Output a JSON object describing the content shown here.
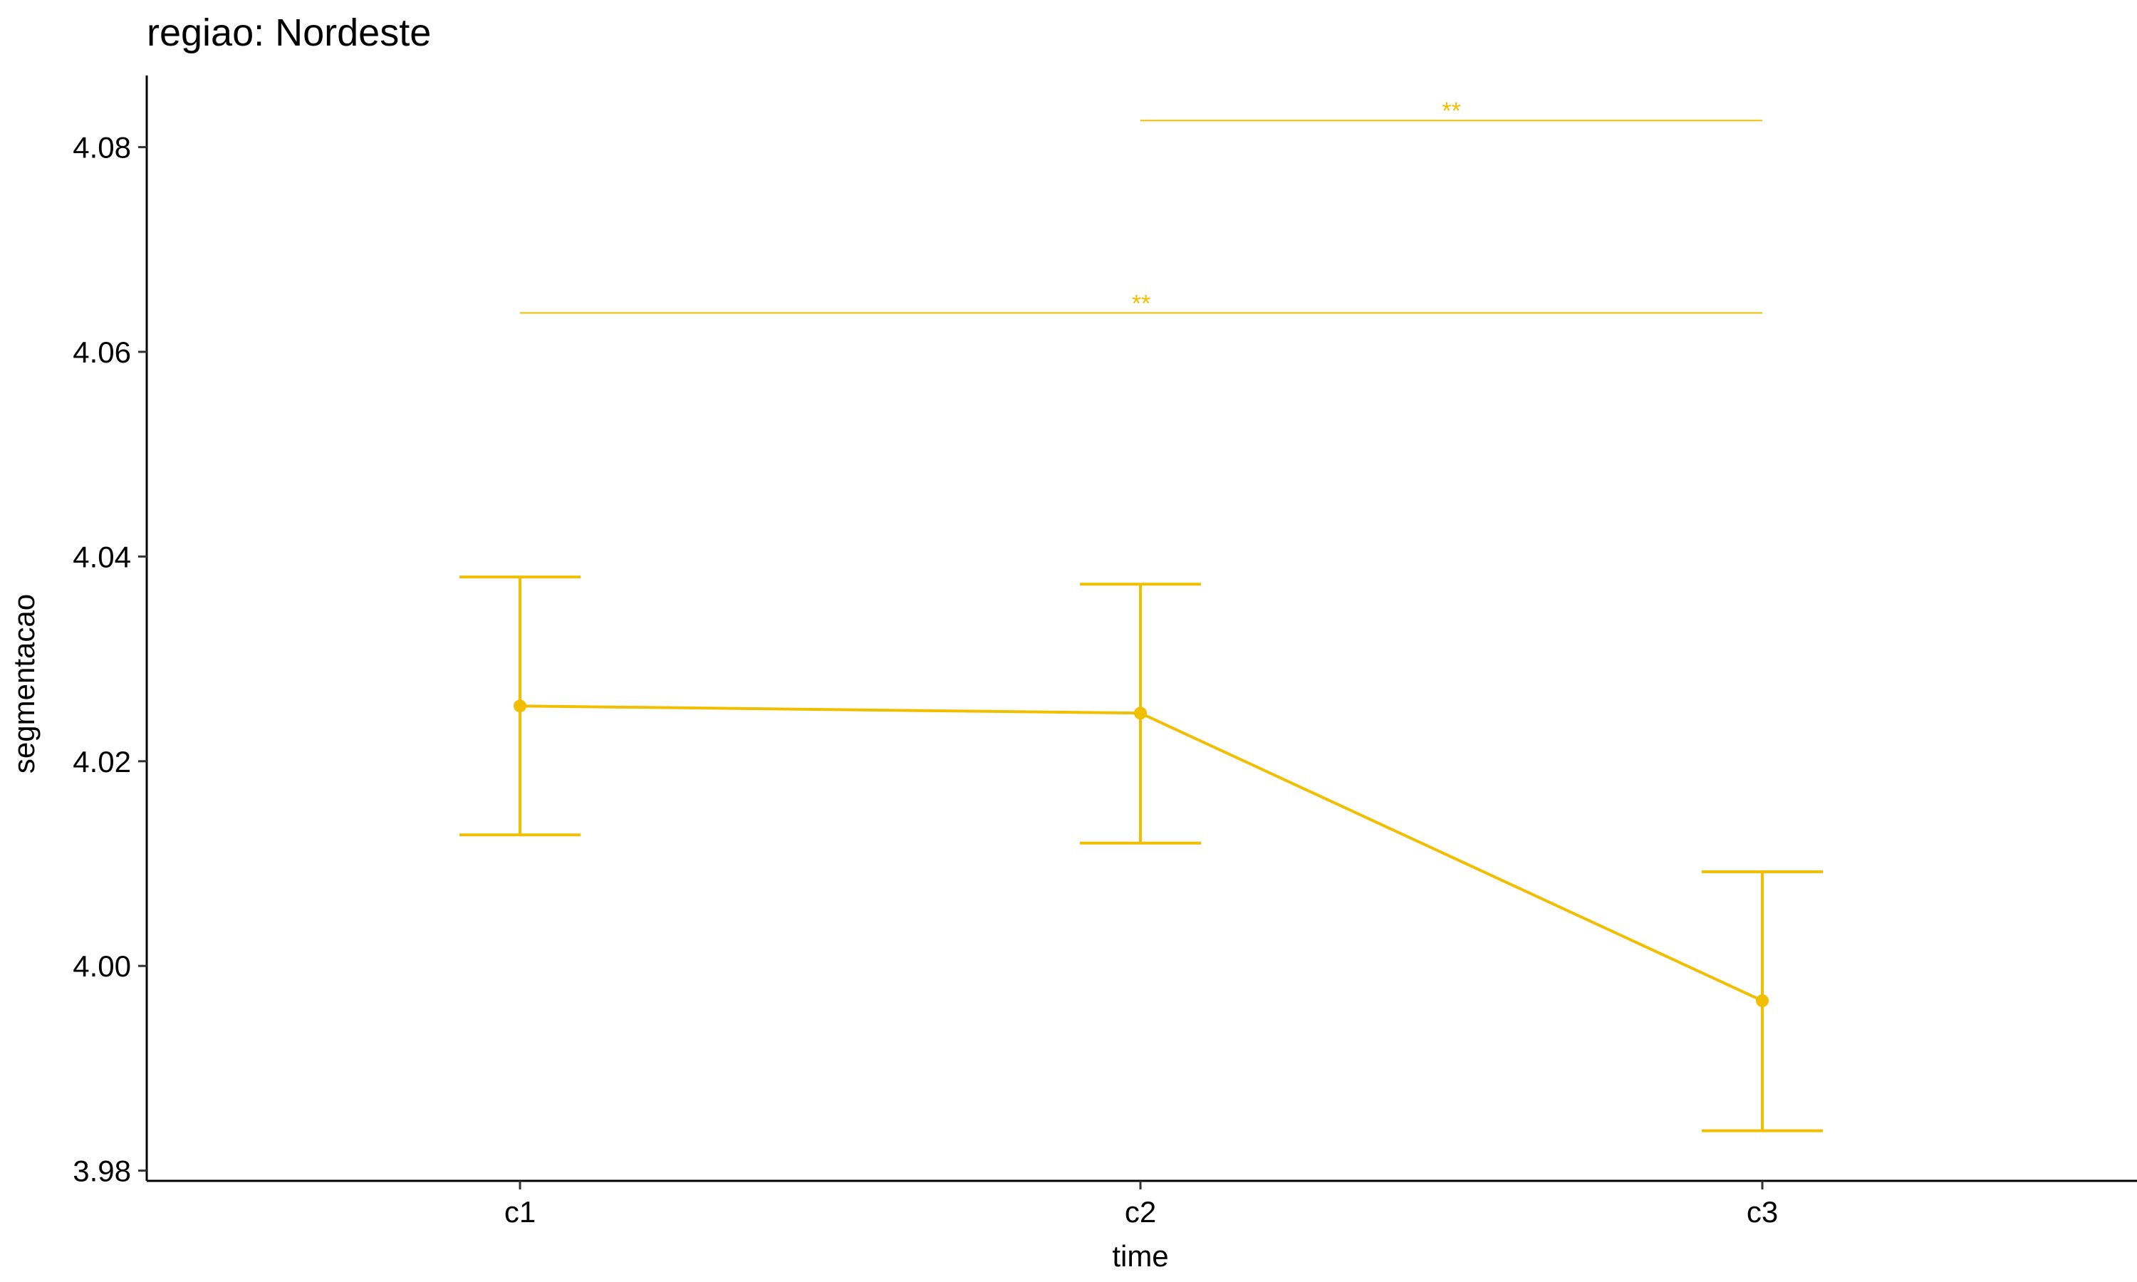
{
  "chart_data": {
    "type": "line",
    "title": "regiao: Nordeste",
    "xlabel": "time",
    "ylabel": "segmentacao",
    "categories": [
      "c1",
      "c2",
      "c3"
    ],
    "ylim": [
      3.979,
      4.087
    ],
    "yticks": [
      3.98,
      4.0,
      4.02,
      4.04,
      4.06,
      4.08
    ],
    "ytick_labels": [
      "3.98",
      "4.00",
      "4.02",
      "4.04",
      "4.06",
      "4.08"
    ],
    "grid": false,
    "legend": "none",
    "color": "#F2BE00",
    "series": [
      {
        "values": [
          4.0254,
          4.0247,
          3.9966
        ],
        "lower": [
          4.0128,
          4.012,
          3.9839
        ],
        "upper": [
          4.038,
          4.0373,
          4.0092
        ]
      }
    ],
    "annotations": [
      {
        "from": "c1",
        "to": "c3",
        "y": 4.0638,
        "label": "**"
      },
      {
        "from": "c2",
        "to": "c3",
        "y": 4.0826,
        "label": "**"
      }
    ]
  }
}
